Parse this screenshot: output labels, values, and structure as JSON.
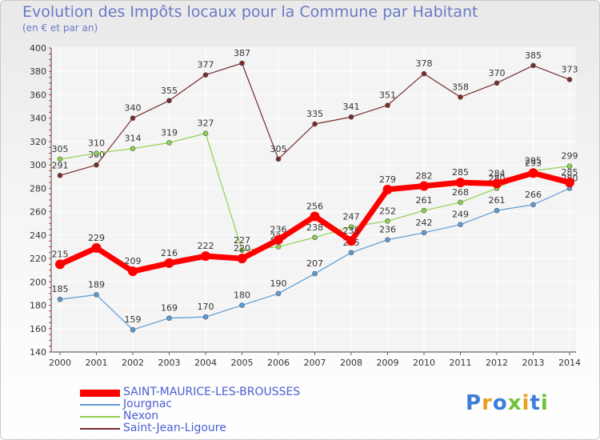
{
  "title": "Evolution des Impôts locaux pour la Commune par Habitant",
  "subtitle": "(en € et par an)",
  "logo_text": "Proxiti",
  "chart_data": {
    "type": "line",
    "title": "Evolution des Impôts locaux pour la Commune par Habitant",
    "subtitle": "(en € et par an)",
    "xlabel": "",
    "ylabel": "",
    "x": [
      "2000",
      "2001",
      "2002",
      "2003",
      "2004",
      "2005",
      "2006",
      "2007",
      "2008",
      "2009",
      "2010",
      "2011",
      "2012",
      "2013",
      "2014"
    ],
    "ylim": [
      140,
      400
    ],
    "yticks": [
      140,
      160,
      180,
      200,
      220,
      240,
      260,
      280,
      300,
      320,
      340,
      360,
      380,
      400
    ],
    "grid": true,
    "legend_position": "bottom-left",
    "series": [
      {
        "name": "SAINT-MAURICE-LES-BROUSSES",
        "color": "#ff0000",
        "values": [
          215,
          229,
          209,
          216,
          222,
          220,
          236,
          256,
          235,
          279,
          282,
          285,
          284,
          293,
          285
        ]
      },
      {
        "name": "Jourgnac",
        "color": "#5b9bd5",
        "values": [
          185,
          189,
          159,
          169,
          170,
          180,
          190,
          207,
          225,
          236,
          242,
          249,
          261,
          266,
          280
        ]
      },
      {
        "name": "Nexon",
        "color": "#8fd14f",
        "values": [
          305,
          310,
          314,
          319,
          327,
          227,
          230,
          238,
          247,
          252,
          261,
          268,
          280,
          295,
          299
        ]
      },
      {
        "name": "Saint-Jean-Ligoure",
        "color": "#7a2a2a",
        "values": [
          291,
          300,
          340,
          355,
          377,
          387,
          305,
          335,
          341,
          351,
          378,
          358,
          370,
          385,
          373
        ]
      }
    ]
  }
}
